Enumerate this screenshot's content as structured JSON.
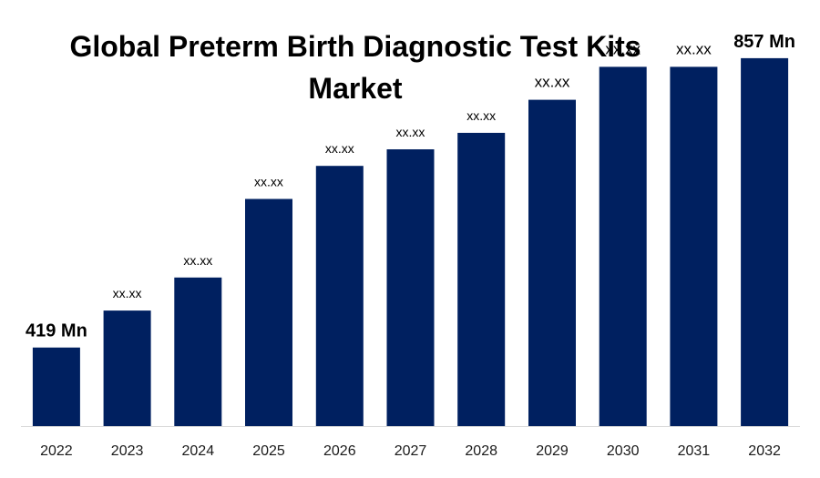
{
  "chart_data": {
    "type": "bar",
    "title": "Global Preterm Birth Diagnostic Test Kits Market",
    "xlabel": "",
    "ylabel": "",
    "categories": [
      "2022",
      "2023",
      "2024",
      "2025",
      "2026",
      "2027",
      "2028",
      "2029",
      "2030",
      "2031",
      "2032"
    ],
    "values": [
      419,
      475,
      525,
      644,
      694,
      719,
      744,
      794,
      844,
      844,
      857
    ],
    "data_labels": [
      "419 Mn",
      "xx.xx",
      "xx.xx",
      "xx.xx",
      "xx.xx",
      "xx.xx",
      "xx.xx",
      "xx.xx",
      "xx.xx",
      "xx.xx",
      "857 Mn"
    ],
    "ylim": [
      300,
      890
    ],
    "grid": false,
    "legend": "none",
    "bar_color": "#002060",
    "axis_color": "#d9d9d9"
  }
}
